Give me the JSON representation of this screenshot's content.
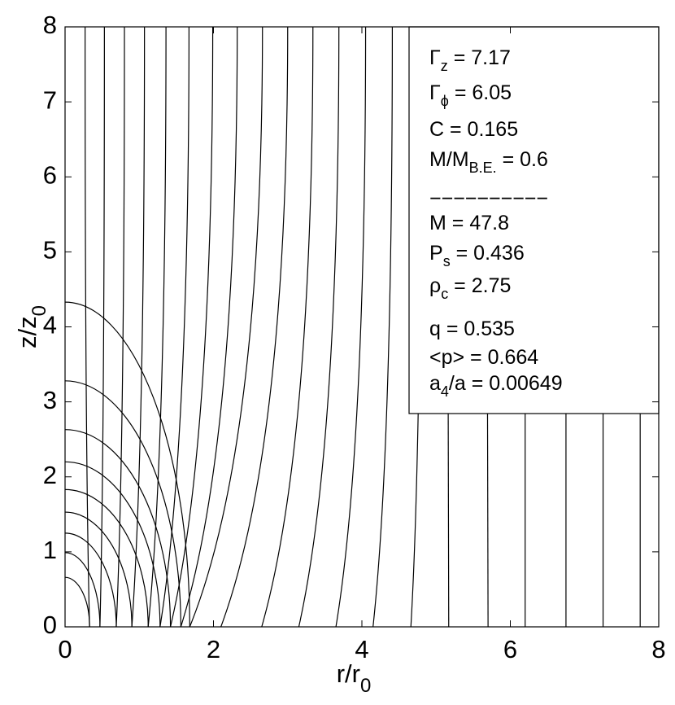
{
  "chart_data": {
    "type": "contour",
    "xlabel": {
      "main": "r/r",
      "sub": "0"
    },
    "ylabel": {
      "main": "z/z",
      "sub": "0"
    },
    "xlim": [
      0,
      8
    ],
    "ylim": [
      0,
      8
    ],
    "xticks": [
      0,
      2,
      4,
      6,
      8
    ],
    "yticks": [
      0,
      1,
      2,
      3,
      4,
      5,
      6,
      7,
      8
    ],
    "line_color": "#000000",
    "density_contours": {
      "r": [
        0.33,
        0.47,
        0.69,
        0.9,
        1.12,
        1.28,
        1.42,
        1.56,
        1.68
      ],
      "z": [
        0.66,
        0.99,
        1.25,
        1.53,
        1.83,
        2.2,
        2.63,
        3.28,
        4.33
      ]
    },
    "field_lines": {
      "r_bottom": [
        0.33,
        0.47,
        0.69,
        0.9,
        1.12,
        1.28,
        1.42,
        1.56,
        1.68,
        2.1,
        2.65,
        3.15,
        3.65,
        4.15,
        4.66,
        5.17,
        5.7,
        6.2,
        6.75,
        7.25,
        7.75
      ],
      "r_top": [
        0.27,
        0.53,
        0.8,
        1.07,
        1.36,
        1.67,
        1.99,
        2.32,
        2.66,
        3.0,
        3.34,
        3.69,
        4.05,
        4.41,
        4.8,
        5.15,
        5.68,
        6.2,
        6.75,
        7.25,
        7.75
      ]
    },
    "annotations": [
      {
        "main": "Γ",
        "sub": "z",
        "rest": " = 7.17"
      },
      {
        "main": "Γ",
        "sub": "ϕ",
        "rest": " = 6.05"
      },
      {
        "main": "C = 0.165"
      },
      {
        "main": "M/M",
        "sub": "B.E.",
        "rest": " = 0.6"
      },
      {
        "main": "−−−−−−−−−−"
      },
      {
        "main": "M = 47.8"
      },
      {
        "main": "P",
        "sub": "s",
        "rest": " = 0.436"
      },
      {
        "main": "ρ",
        "sub": "c",
        "rest": " = 2.75"
      },
      {
        "main": "q = 0.535"
      },
      {
        "main": "<p> = 0.664"
      },
      {
        "main": "a",
        "sub": "4",
        "rest": "/a = 0.00649"
      }
    ]
  }
}
